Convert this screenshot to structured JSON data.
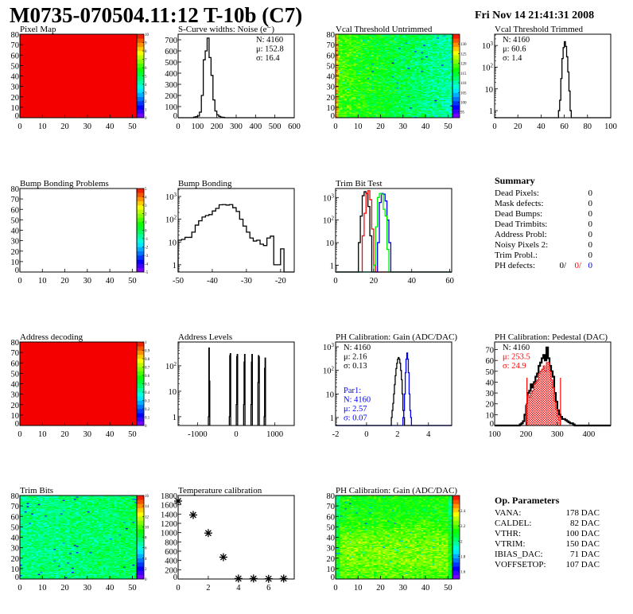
{
  "header": {
    "title": "M0735-070504.11:12 T-10b (C7)",
    "date": "Fri Nov 14 21:41:31 2008"
  },
  "chart_data": [
    {
      "type": "heatmap",
      "title": "Pixel Map",
      "fill": "uniform",
      "z_value": 10,
      "xlim": [
        0,
        52
      ],
      "ylim": [
        0,
        80
      ],
      "xticks": [
        0,
        10,
        20,
        30,
        40,
        50
      ],
      "yticks": [
        0,
        10,
        20,
        30,
        40,
        50,
        60,
        70,
        80
      ],
      "zlim": [
        0,
        10
      ],
      "zticks": [
        "0",
        "1",
        "2",
        "3",
        "4",
        "5",
        "6",
        "7",
        "8",
        "9",
        "10"
      ]
    },
    {
      "type": "bar",
      "title": "S-Curve widths: Noise (e⁻)",
      "yscale": "linear",
      "xlim": [
        0,
        600
      ],
      "ylim": [
        0,
        750
      ],
      "xticks": [
        0,
        100,
        200,
        300,
        400,
        500,
        600
      ],
      "yticks": [
        0,
        100,
        200,
        300,
        400,
        500,
        600,
        700
      ],
      "series": [
        {
          "color": "#000000",
          "x_start": 80,
          "bin_width": 10,
          "values": [
            5,
            10,
            15,
            50,
            200,
            520,
            600,
            715,
            540,
            380,
            160,
            60,
            25,
            12,
            5,
            3
          ]
        }
      ],
      "stats": [
        {
          "text": "N: 4160",
          "color": "#000000"
        },
        {
          "text": "μ: 152.8",
          "color": "#000000"
        },
        {
          "text": "σ: 16.4",
          "color": "#000000"
        }
      ],
      "stats_pos": "top-right"
    },
    {
      "type": "heatmap",
      "title": "Vcal Threshold Untrimmed",
      "fill": "noise",
      "xlim": [
        0,
        52
      ],
      "ylim": [
        0,
        80
      ],
      "xticks": [
        0,
        10,
        20,
        30,
        40,
        50
      ],
      "yticks": [
        0,
        10,
        20,
        30,
        40,
        50,
        60,
        70,
        80
      ],
      "zlim": [
        92,
        135
      ],
      "zticks": [
        "95",
        "100",
        "105",
        "110",
        "115",
        "120",
        "125",
        "130"
      ]
    },
    {
      "type": "bar",
      "title": "Vcal Threshold Trimmed",
      "yscale": "log",
      "xlim": [
        0,
        100
      ],
      "ylim": [
        0.47,
        3300
      ],
      "xticks": [
        0,
        20,
        40,
        60,
        80,
        100
      ],
      "yticks": [
        1,
        10,
        100,
        1000
      ],
      "series": [
        {
          "color": "#000000",
          "x_start": 55,
          "bin_width": 1,
          "values": [
            1,
            3,
            30,
            250,
            800,
            1500,
            900,
            300,
            60,
            8,
            1
          ]
        }
      ],
      "stats": [
        {
          "text": "N: 4160",
          "color": "#000000"
        },
        {
          "text": "μ: 60.6",
          "color": "#000000"
        },
        {
          "text": "σ:  1.4",
          "color": "#000000"
        }
      ],
      "stats_pos": "top-left"
    },
    {
      "type": "heatmap",
      "title": "Bump Bonding Problems",
      "fill": "empty",
      "xlim": [
        0,
        52
      ],
      "ylim": [
        0,
        80
      ],
      "xticks": [
        0,
        10,
        20,
        30,
        40,
        50
      ],
      "yticks": [
        0,
        10,
        20,
        30,
        40,
        50,
        60,
        70,
        80
      ],
      "zlim": [
        -5,
        5
      ],
      "zticks": [
        "-5",
        "-4",
        "-3",
        "-2",
        "-1",
        "0",
        "1",
        "2",
        "3",
        "4",
        "5"
      ]
    },
    {
      "type": "bar",
      "title": "Bump Bonding",
      "yscale": "log",
      "xlim": [
        -50,
        -16
      ],
      "ylim": [
        0.48,
        2240
      ],
      "xticks": [
        -50,
        -40,
        -30,
        -20
      ],
      "yticks": [
        1,
        10,
        100,
        1000
      ],
      "series": [
        {
          "color": "#000000",
          "x_start": -50,
          "bin_width": 1,
          "values": [
            12,
            13,
            16,
            16,
            27,
            55,
            85,
            125,
            145,
            160,
            230,
            300,
            430,
            440,
            420,
            440,
            320,
            220,
            100,
            50,
            27,
            15,
            11,
            12,
            8,
            7,
            15,
            18,
            1,
            1,
            5
          ]
        }
      ]
    },
    {
      "type": "bar",
      "title": "Trim Bit Test",
      "yscale": "log",
      "xlim": [
        0,
        61
      ],
      "ylim": [
        0.5,
        2500
      ],
      "xticks": [
        0,
        20,
        40,
        60
      ],
      "yticks": [
        1,
        10,
        100,
        1000
      ],
      "series": [
        {
          "color": "#000000",
          "x_start": 12,
          "bin_width": 1,
          "values": [
            10,
            150,
            1200,
            1800,
            1500,
            400,
            20
          ]
        },
        {
          "color": "#ff0000",
          "x_start": 14,
          "bin_width": 1,
          "values": [
            20,
            200,
            1500,
            2000,
            800,
            40,
            1
          ]
        },
        {
          "color": "#0000ff",
          "x_start": 22,
          "bin_width": 1,
          "values": [
            10,
            600,
            1500,
            1400,
            700,
            100,
            10
          ]
        },
        {
          "color": "#00ee00",
          "x_start": 20,
          "bin_width": 1,
          "values": [
            1,
            50,
            1000,
            1500,
            1400,
            300,
            150,
            5
          ]
        }
      ]
    },
    {
      "type": "text",
      "title": "Summary",
      "rows": [
        {
          "label": "Dead Pixels:",
          "value": "0"
        },
        {
          "label": "Mask defects:",
          "value": "0"
        },
        {
          "label": "Dead Bumps:",
          "value": "0"
        },
        {
          "label": "Dead Trimbits:",
          "value": "0"
        },
        {
          "label": "Address Probl:",
          "value": "0"
        },
        {
          "label": "Noisy Pixels 2:",
          "value": "0"
        },
        {
          "label": "Trim Probl.:",
          "value": "0"
        }
      ],
      "ph_defects": {
        "label": "PH defects:",
        "values": [
          {
            "text": "0/",
            "color": "#000000"
          },
          {
            "text": "0/",
            "color": "#ff0000"
          },
          {
            "text": "0",
            "color": "#0000ff"
          }
        ]
      }
    },
    {
      "type": "heatmap",
      "title": "Address decoding",
      "fill": "uniform",
      "z_value": 1,
      "xlim": [
        0,
        52
      ],
      "ylim": [
        0,
        80
      ],
      "xticks": [
        0,
        10,
        20,
        30,
        40,
        50
      ],
      "yticks": [
        0,
        10,
        20,
        30,
        40,
        50,
        60,
        70,
        80
      ],
      "zlim": [
        0,
        1
      ],
      "zticks": [
        "0",
        "0.1",
        "0.2",
        "0.3",
        "0.4",
        "0.5",
        "0.6",
        "0.7",
        "0.8",
        "0.9",
        "1"
      ]
    },
    {
      "type": "bar",
      "title": "Address Levels",
      "yscale": "log",
      "xlim": [
        -1500,
        1500
      ],
      "ylim": [
        0.45,
        860
      ],
      "xticks": [
        -1000,
        0,
        1000
      ],
      "yticks": [
        1,
        10,
        100
      ],
      "series": [
        {
          "color": "#000000",
          "spikes": [
            {
              "x": -700,
              "values": [
                1,
                500,
                25
              ]
            },
            {
              "x": -160,
              "values": [
                1,
                250,
                300
              ]
            },
            {
              "x": 20,
              "values": [
                3,
                230,
                280
              ]
            },
            {
              "x": 210,
              "values": [
                3,
                140,
                280
              ]
            },
            {
              "x": 400,
              "values": [
                3,
                140,
                280
              ]
            },
            {
              "x": 580,
              "values": [
                22,
                250,
                220
              ]
            },
            {
              "x": 740,
              "values": [
                1,
                80,
                200
              ]
            }
          ]
        }
      ]
    },
    {
      "type": "bar",
      "title": "PH Calibration: Gain (ADC/DAC)",
      "yscale": "log",
      "xlim": [
        -2,
        5.5
      ],
      "ylim": [
        0.46,
        1600
      ],
      "xticks": [
        -2,
        0,
        2,
        4
      ],
      "yticks": [
        1,
        10,
        100,
        1000
      ],
      "series": [
        {
          "color": "#000000",
          "x_start": 1.6,
          "bin_width": 0.05,
          "values": [
            1,
            2,
            4,
            10,
            25,
            60,
            120,
            200,
            300,
            350,
            300,
            200,
            100,
            40,
            10,
            2,
            1
          ]
        },
        {
          "color": "#0000ff",
          "x_start": 2.35,
          "bin_width": 0.05,
          "values": [
            1,
            2,
            10,
            80,
            300,
            550,
            300,
            80,
            10,
            2,
            1
          ]
        }
      ],
      "stats": [
        {
          "text": "N: 4160",
          "color": "#000000"
        },
        {
          "text": "μ: 2.16",
          "color": "#000000"
        },
        {
          "text": "σ: 0.13",
          "color": "#000000"
        }
      ],
      "stats_pos": "top-left",
      "stats2": [
        {
          "text": "Par1:",
          "color": "#0000ff"
        },
        {
          "text": "N: 4160",
          "color": "#0000ff"
        },
        {
          "text": "μ: 2.57",
          "color": "#0000ff"
        },
        {
          "text": "σ: 0.07",
          "color": "#0000ff"
        }
      ]
    },
    {
      "type": "bar",
      "title": "PH Calibration: Pedestal (DAC)",
      "yscale": "linear",
      "xlim": [
        100,
        470
      ],
      "ylim": [
        0,
        77
      ],
      "xticks": [
        100,
        200,
        300,
        400
      ],
      "yticks": [
        0,
        10,
        20,
        30,
        40,
        50,
        60,
        70
      ],
      "series": [
        {
          "color": "#000000",
          "x_start": 180,
          "bin_width": 5,
          "values": [
            1,
            2,
            4,
            10,
            18,
            30,
            32,
            38,
            35,
            40,
            45,
            48,
            55,
            58,
            62,
            65,
            60,
            72,
            62,
            55,
            50,
            45,
            30,
            22,
            14,
            10,
            8,
            6,
            6,
            5,
            4,
            3,
            2,
            2,
            1
          ]
        },
        {
          "color": "#ff0000",
          "hatched": true,
          "x_start": 200,
          "bin_width": 5,
          "values": [
            20,
            28,
            26,
            30,
            32,
            38,
            40,
            42,
            48,
            50,
            52,
            55,
            50,
            58,
            58,
            50,
            42,
            35,
            22,
            15,
            8,
            5
          ]
        }
      ],
      "markers": [
        {
          "x": 203,
          "y": 44,
          "color": "#ff0000"
        },
        {
          "x": 310,
          "y": 44,
          "color": "#ff0000"
        }
      ],
      "stats": [
        {
          "text": "N: 4160",
          "color": "#000000"
        },
        {
          "text": "μ: 253.5",
          "color": "#ff0000"
        },
        {
          "text": "σ: 24.9",
          "color": "#ff0000"
        }
      ],
      "stats_pos": "top-left"
    },
    {
      "type": "heatmap",
      "title": "Trim Bits",
      "fill": "noise",
      "xlim": [
        0,
        52
      ],
      "ylim": [
        0,
        80
      ],
      "xticks": [
        0,
        10,
        20,
        30,
        40,
        50
      ],
      "yticks": [
        0,
        10,
        20,
        30,
        40,
        50,
        60,
        70,
        80
      ],
      "zlim": [
        0,
        16
      ],
      "zticks": [
        "0",
        "2",
        "4",
        "6",
        "8",
        "10",
        "12",
        "14",
        "16"
      ]
    },
    {
      "type": "scatter",
      "title": "Temperature calibration",
      "xlim": [
        0,
        7.7
      ],
      "ylim": [
        0,
        1800
      ],
      "xticks": [
        0,
        2,
        4,
        6
      ],
      "yticks": [
        0,
        200,
        400,
        600,
        800,
        1000,
        1200,
        1400,
        1600,
        1800
      ],
      "points": [
        [
          0,
          1680
        ],
        [
          1,
          1380
        ],
        [
          2,
          990
        ],
        [
          3,
          470
        ],
        [
          4,
          10
        ],
        [
          5,
          10
        ],
        [
          6,
          5
        ],
        [
          7,
          10
        ]
      ]
    },
    {
      "type": "heatmap",
      "title": "PH Calibration: Gain (ADC/DAC)",
      "fill": "noise",
      "xlim": [
        0,
        52
      ],
      "ylim": [
        0,
        80
      ],
      "xticks": [
        0,
        10,
        20,
        30,
        40,
        50
      ],
      "yticks": [
        0,
        10,
        20,
        30,
        40,
        50,
        60,
        70,
        80
      ],
      "zlim": [
        1.5,
        2.6
      ],
      "zticks": [
        "1.6",
        "1.8",
        "2",
        "2.2",
        "2.4"
      ]
    },
    {
      "type": "text",
      "title": "Op. Parameters",
      "rows": [
        {
          "label": "VANA:",
          "value": "178 DAC"
        },
        {
          "label": "CALDEL:",
          "value": "82 DAC"
        },
        {
          "label": "VTHR:",
          "value": "100 DAC"
        },
        {
          "label": "VTRIM:",
          "value": "150 DAC"
        },
        {
          "label": "IBIAS_DAC:",
          "value": "71 DAC"
        },
        {
          "label": "VOFFSETOP:",
          "value": "107 DAC"
        }
      ]
    }
  ]
}
